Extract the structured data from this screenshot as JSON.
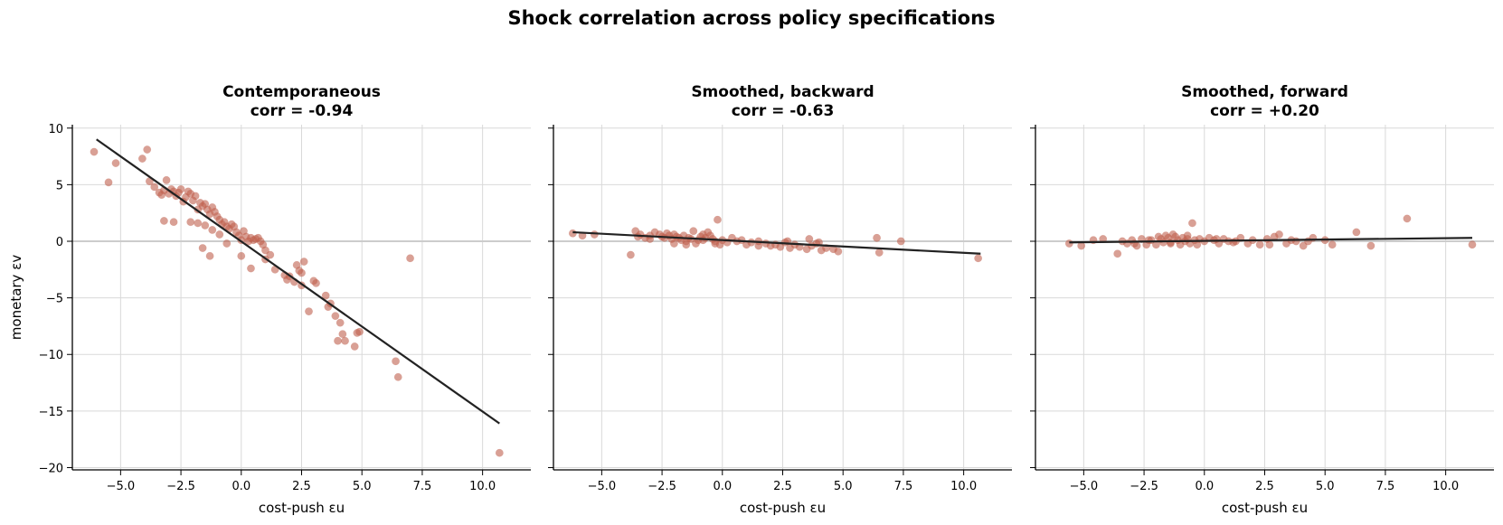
{
  "figure": {
    "title": "Shock correlation across policy specifications"
  },
  "colors": {
    "points": "#c0604f",
    "fit_line": "#222222",
    "grid": "#d9d9d9",
    "zero_line": "#cccccc"
  },
  "chart_data": [
    {
      "type": "scatter",
      "title_line1": "Contemporaneous",
      "title_line2": "corr = -0.94",
      "xlabel": "cost-push  εu",
      "ylabel": "monetary  εv",
      "xlim": [
        -7.0,
        12.0
      ],
      "ylim": [
        -20.2,
        10.3
      ],
      "xticks": [
        -5.0,
        -2.5,
        0.0,
        2.5,
        5.0,
        7.5,
        10.0
      ],
      "xtick_labels": [
        "−5.0",
        "−2.5",
        "0.0",
        "2.5",
        "5.0",
        "7.5",
        "10.0"
      ],
      "yticks": [
        10,
        5,
        0,
        -5,
        -10,
        -15,
        -20
      ],
      "ytick_labels": [
        "10",
        "5",
        "0",
        "−5",
        "−10",
        "−15",
        "−20"
      ],
      "grid": true,
      "fit_line": {
        "x": [
          -6.0,
          10.7
        ],
        "y": [
          9.0,
          -16.1
        ]
      },
      "x": [
        -6.1,
        -5.5,
        -5.2,
        -4.1,
        -3.9,
        -3.8,
        -3.6,
        -3.4,
        -3.3,
        -3.2,
        -3.1,
        -3.0,
        -2.9,
        -2.8,
        -2.7,
        -2.6,
        -2.5,
        -2.4,
        -2.3,
        -2.2,
        -2.1,
        -2.0,
        -1.9,
        -1.8,
        -1.7,
        -1.6,
        -1.5,
        -1.4,
        -1.3,
        -1.2,
        -1.1,
        -1.0,
        -0.9,
        -0.8,
        -0.7,
        -0.6,
        -0.5,
        -0.4,
        -0.3,
        -0.2,
        -0.1,
        0.0,
        0.1,
        0.2,
        0.3,
        0.4,
        0.5,
        0.6,
        0.7,
        0.8,
        0.9,
        1.0,
        1.2,
        1.4,
        -2.8,
        -3.2,
        -2.1,
        -1.8,
        -1.5,
        -1.2,
        -0.9,
        -0.6,
        0.0,
        0.4,
        1.0,
        1.8,
        1.9,
        2.0,
        2.2,
        2.4,
        2.5,
        2.6,
        2.8,
        3.0,
        3.1,
        3.5,
        3.6,
        3.7,
        3.9,
        4.0,
        4.1,
        4.2,
        4.3,
        4.7,
        4.8,
        4.9,
        6.4,
        6.5,
        7.0,
        10.7,
        -1.6,
        -1.3,
        2.3,
        2.5
      ],
      "y": [
        7.9,
        5.2,
        6.9,
        7.3,
        8.1,
        5.3,
        4.8,
        4.3,
        4.1,
        4.5,
        5.4,
        4.2,
        4.6,
        4.4,
        4.0,
        4.3,
        4.6,
        3.5,
        3.9,
        4.4,
        4.2,
        3.6,
        4.0,
        2.8,
        3.4,
        3.1,
        3.3,
        2.8,
        2.4,
        3.0,
        2.6,
        2.2,
        1.9,
        1.5,
        1.7,
        1.3,
        1.1,
        1.5,
        1.3,
        0.8,
        0.5,
        0.1,
        0.9,
        0.4,
        0.0,
        0.3,
        0.1,
        0.2,
        0.3,
        0.0,
        -0.3,
        -0.8,
        -1.2,
        -2.5,
        1.7,
        1.8,
        1.7,
        1.6,
        1.4,
        1.0,
        0.6,
        -0.2,
        -1.3,
        -2.4,
        -1.6,
        -3.0,
        -3.4,
        -3.1,
        -3.6,
        -2.6,
        -3.9,
        -1.8,
        -6.2,
        -3.5,
        -3.7,
        -4.8,
        -5.8,
        -5.5,
        -6.6,
        -8.8,
        -7.2,
        -8.2,
        -8.8,
        -9.3,
        -8.1,
        -8.0,
        -10.6,
        -12.0,
        -1.5,
        -18.7,
        -0.6,
        -1.3,
        -2.1,
        -2.8
      ]
    },
    {
      "type": "scatter",
      "title_line1": "Smoothed, backward",
      "title_line2": "corr = -0.63",
      "xlabel": "cost-push  εu",
      "ylabel": "",
      "xlim": [
        -7.0,
        12.0
      ],
      "ylim": [
        -20.2,
        10.3
      ],
      "xticks": [
        -5.0,
        -2.5,
        0.0,
        2.5,
        5.0,
        7.5,
        10.0
      ],
      "xtick_labels": [
        "−5.0",
        "−2.5",
        "0.0",
        "2.5",
        "5.0",
        "7.5",
        "10.0"
      ],
      "yticks": [
        10,
        5,
        0,
        -5,
        -10,
        -15,
        -20
      ],
      "grid": true,
      "fit_line": {
        "x": [
          -6.2,
          10.7
        ],
        "y": [
          0.8,
          -1.1
        ]
      },
      "x": [
        -6.2,
        -5.8,
        -5.3,
        -3.8,
        -3.6,
        -3.5,
        -3.4,
        -3.2,
        -3.0,
        -2.8,
        -2.6,
        -2.5,
        -2.4,
        -2.3,
        -2.2,
        -2.1,
        -2.0,
        -1.9,
        -1.8,
        -1.7,
        -1.6,
        -1.5,
        -1.4,
        -1.3,
        -1.2,
        -1.1,
        -1.0,
        -0.9,
        -0.8,
        -0.7,
        -0.6,
        -0.5,
        -0.4,
        -0.3,
        -0.2,
        -0.1,
        0.0,
        0.2,
        0.4,
        0.6,
        0.8,
        1.0,
        1.2,
        1.5,
        1.8,
        2.0,
        2.2,
        2.4,
        2.6,
        2.8,
        3.0,
        3.2,
        3.5,
        3.7,
        3.9,
        4.1,
        4.3,
        4.6,
        4.8,
        6.4,
        6.5,
        7.4,
        10.6,
        -0.3,
        -1.5,
        -3.0,
        -2.0,
        -0.8,
        1.5,
        2.7,
        3.6,
        4.0
      ],
      "y": [
        0.7,
        0.5,
        0.6,
        -1.2,
        0.9,
        0.4,
        0.6,
        0.3,
        0.5,
        0.8,
        0.6,
        0.4,
        0.3,
        0.7,
        0.5,
        0.2,
        0.6,
        0.4,
        0.3,
        0.1,
        0.5,
        0.0,
        0.3,
        0.2,
        0.9,
        -0.2,
        0.1,
        0.4,
        0.6,
        0.3,
        0.8,
        0.5,
        0.2,
        0.0,
        1.9,
        -0.3,
        0.1,
        -0.1,
        0.3,
        0.0,
        0.1,
        -0.3,
        -0.1,
        0.0,
        -0.2,
        -0.4,
        -0.3,
        -0.5,
        -0.1,
        -0.6,
        -0.3,
        -0.5,
        -0.7,
        -0.4,
        -0.2,
        -0.8,
        -0.6,
        -0.7,
        -0.9,
        0.3,
        -1.0,
        0.0,
        -1.5,
        -0.2,
        -0.3,
        0.2,
        -0.2,
        0.1,
        -0.4,
        0.0,
        0.2,
        -0.1
      ]
    },
    {
      "type": "scatter",
      "title_line1": "Smoothed, forward",
      "title_line2": "corr = +0.20",
      "xlabel": "cost-push  εu",
      "ylabel": "",
      "xlim": [
        -7.0,
        12.0
      ],
      "ylim": [
        -20.2,
        10.3
      ],
      "xticks": [
        -5.0,
        -2.5,
        0.0,
        2.5,
        5.0,
        7.5,
        10.0
      ],
      "xtick_labels": [
        "−5.0",
        "−2.5",
        "0.0",
        "2.5",
        "5.0",
        "7.5",
        "10.0"
      ],
      "yticks": [
        10,
        5,
        0,
        -5,
        -10,
        -15,
        -20
      ],
      "grid": true,
      "fit_line": {
        "x": [
          -5.6,
          11.1
        ],
        "y": [
          -0.1,
          0.3
        ]
      },
      "x": [
        -5.6,
        -5.1,
        -4.6,
        -4.2,
        -3.6,
        -3.4,
        -3.2,
        -3.0,
        -2.8,
        -2.6,
        -2.4,
        -2.2,
        -2.0,
        -1.9,
        -1.8,
        -1.7,
        -1.6,
        -1.5,
        -1.4,
        -1.3,
        -1.2,
        -1.1,
        -1.0,
        -0.9,
        -0.8,
        -0.7,
        -0.6,
        -0.5,
        -0.4,
        -0.3,
        -0.2,
        0.0,
        0.2,
        0.4,
        0.6,
        0.8,
        1.0,
        1.2,
        1.5,
        1.8,
        2.0,
        2.3,
        2.6,
        2.9,
        3.1,
        3.4,
        3.8,
        4.1,
        4.5,
        5.0,
        5.3,
        6.3,
        6.9,
        8.4,
        11.1,
        -0.7,
        -1.4,
        -2.9,
        -2.3,
        0.5,
        1.3,
        2.7,
        3.6,
        4.3
      ],
      "y": [
        -0.2,
        -0.4,
        0.1,
        0.2,
        -1.1,
        0.0,
        -0.2,
        0.1,
        -0.4,
        0.2,
        -0.3,
        0.1,
        -0.3,
        0.4,
        0.2,
        -0.1,
        0.5,
        0.3,
        -0.2,
        0.6,
        0.4,
        0.1,
        -0.3,
        0.3,
        0.0,
        0.5,
        -0.2,
        1.6,
        0.1,
        -0.3,
        0.2,
        0.0,
        0.3,
        0.1,
        -0.2,
        0.2,
        0.0,
        -0.1,
        0.3,
        -0.2,
        0.1,
        -0.3,
        0.2,
        0.4,
        0.6,
        -0.2,
        0.0,
        -0.4,
        0.3,
        0.1,
        -0.3,
        0.8,
        -0.4,
        2.0,
        -0.3,
        0.2,
        -0.1,
        -0.2,
        0.1,
        0.2,
        0.0,
        -0.3,
        0.1,
        0.0
      ]
    }
  ]
}
